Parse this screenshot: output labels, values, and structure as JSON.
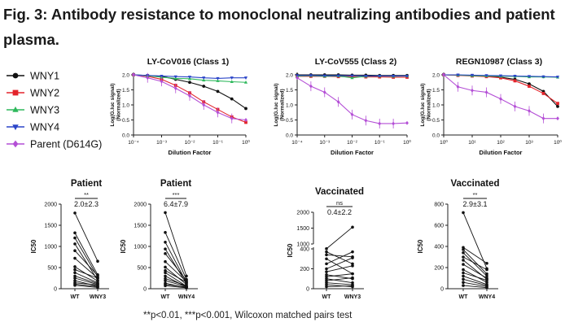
{
  "figure": {
    "title": "Fig. 3: Antibody resistance to monoclonal neutralizing antibodies and patient plasma.",
    "footnote": "**p<0.01, ***p<0.001, Wilcoxon matched pairs test"
  },
  "legend": {
    "entries": [
      {
        "name": "WNY1",
        "color": "#111111",
        "marker": "circle"
      },
      {
        "name": "WNY2",
        "color": "#e3242b",
        "marker": "square"
      },
      {
        "name": "WNY3",
        "color": "#2eb85c",
        "marker": "triangle-up"
      },
      {
        "name": "WNY4",
        "color": "#2b45c8",
        "marker": "triangle-down"
      },
      {
        "name": "Parent (D614G)",
        "color": "#b44fd6",
        "marker": "diamond"
      }
    ]
  },
  "colors": {
    "WNY1": "#111111",
    "WNY2": "#e3242b",
    "WNY3": "#2eb85c",
    "WNY4": "#2b45c8",
    "Parent (D614G)": "#b44fd6"
  },
  "chart_data": [
    {
      "type": "line",
      "title": "LY-CoV016 (Class 1)",
      "xlabel": "Dilution Factor",
      "ylabel": "Log(G.luc signal) (Normalized)",
      "xscale": "log",
      "xticks": [
        "10⁻⁴",
        "10⁻³",
        "10⁻²",
        "10⁻¹",
        "10⁰"
      ],
      "ylim": [
        0,
        2.0
      ],
      "yticks": [
        "0.0",
        "0.5",
        "1.0",
        "1.5",
        "2.0"
      ],
      "x": [
        -4,
        -3.5,
        -3,
        -2.5,
        -2,
        -1.5,
        -1,
        -0.5,
        0
      ],
      "series": [
        {
          "name": "WNY1",
          "values": [
            2.0,
            1.98,
            1.95,
            1.85,
            1.75,
            1.62,
            1.45,
            1.2,
            0.88
          ]
        },
        {
          "name": "WNY2",
          "values": [
            2.0,
            1.95,
            1.85,
            1.65,
            1.4,
            1.1,
            0.85,
            0.6,
            0.42
          ]
        },
        {
          "name": "WNY3",
          "values": [
            2.0,
            1.97,
            1.92,
            1.88,
            1.87,
            1.82,
            1.8,
            1.77,
            1.75
          ]
        },
        {
          "name": "WNY4",
          "values": [
            2.0,
            1.98,
            1.96,
            1.94,
            1.93,
            1.9,
            1.88,
            1.9,
            1.9
          ]
        },
        {
          "name": "Parent (D614G)",
          "values": [
            2.0,
            1.9,
            1.78,
            1.55,
            1.3,
            1.0,
            0.75,
            0.55,
            0.5
          ]
        }
      ]
    },
    {
      "type": "line",
      "title": "LY-CoV555 (Class 2)",
      "xlabel": "Dilution Factor",
      "ylabel": "Log(G.luc signal) (Normalized)",
      "xscale": "log",
      "xticks": [
        "10⁻⁴",
        "10⁻³",
        "10⁻²",
        "10⁻¹",
        "10⁰"
      ],
      "ylim": [
        0,
        2.0
      ],
      "yticks": [
        "0.0",
        "0.5",
        "1.0",
        "1.5",
        "2.0"
      ],
      "x": [
        -4,
        -3.5,
        -3,
        -2.5,
        -2,
        -1.5,
        -1,
        -0.5,
        0
      ],
      "series": [
        {
          "name": "WNY1",
          "values": [
            2.0,
            2.0,
            2.0,
            2.0,
            1.99,
            1.99,
            1.98,
            1.98,
            1.98
          ]
        },
        {
          "name": "WNY2",
          "values": [
            1.95,
            1.95,
            1.95,
            1.94,
            1.94,
            1.93,
            1.93,
            1.92,
            1.92
          ]
        },
        {
          "name": "WNY3",
          "values": [
            1.96,
            1.97,
            1.95,
            1.96,
            1.9,
            1.95,
            1.96,
            1.95,
            1.96
          ]
        },
        {
          "name": "WNY4",
          "values": [
            1.98,
            1.98,
            1.97,
            1.97,
            1.97,
            1.96,
            1.96,
            1.96,
            1.96
          ]
        },
        {
          "name": "Parent (D614G)",
          "values": [
            1.9,
            1.62,
            1.42,
            1.1,
            0.68,
            0.48,
            0.38,
            0.38,
            0.4
          ]
        }
      ]
    },
    {
      "type": "line",
      "title": "REGN10987 (Class 3)",
      "xlabel": "Dilution Factor",
      "ylabel": "Log(G.luc signal) (Normalized)",
      "xscale": "log",
      "xticks": [
        "10⁰",
        "10¹",
        "10²",
        "10³",
        "10⁰"
      ],
      "ylim": [
        0,
        2.0
      ],
      "yticks": [
        "0.0",
        "0.5",
        "1.0",
        "1.5",
        "2.0"
      ],
      "x": [
        0,
        0.5,
        1,
        1.5,
        2,
        2.5,
        3,
        3.5,
        4
      ],
      "series": [
        {
          "name": "WNY1",
          "values": [
            2.0,
            1.99,
            1.98,
            1.96,
            1.92,
            1.85,
            1.7,
            1.45,
            0.95
          ]
        },
        {
          "name": "WNY2",
          "values": [
            2.0,
            1.98,
            1.96,
            1.94,
            1.9,
            1.8,
            1.62,
            1.38,
            1.05
          ]
        },
        {
          "name": "WNY3",
          "values": [
            2.0,
            1.99,
            1.97,
            1.96,
            1.95,
            1.95,
            1.93,
            1.93,
            1.92
          ]
        },
        {
          "name": "WNY4",
          "values": [
            2.0,
            2.0,
            1.99,
            1.98,
            1.97,
            1.96,
            1.95,
            1.94,
            1.93
          ]
        },
        {
          "name": "Parent (D614G)",
          "values": [
            2.0,
            1.6,
            1.48,
            1.42,
            1.2,
            0.95,
            0.8,
            0.55,
            0.55
          ]
        }
      ]
    },
    {
      "type": "scatter",
      "title": "Patient",
      "ylabel": "IC50",
      "categories": [
        "WT",
        "WNY3"
      ],
      "ylim": [
        0,
        2000
      ],
      "yticks": [
        "0",
        "500",
        "1000",
        "1500",
        "2000"
      ],
      "significance": "**",
      "fold_change": "2.0±2.3",
      "pairs": [
        [
          1790,
          650
        ],
        [
          1320,
          330
        ],
        [
          1200,
          280
        ],
        [
          1060,
          200
        ],
        [
          900,
          310
        ],
        [
          720,
          250
        ],
        [
          520,
          180
        ],
        [
          450,
          250
        ],
        [
          380,
          140
        ],
        [
          300,
          120
        ],
        [
          250,
          100
        ],
        [
          190,
          60
        ],
        [
          140,
          90
        ],
        [
          110,
          50
        ],
        [
          80,
          30
        ]
      ]
    },
    {
      "type": "scatter",
      "title": "Patient",
      "ylabel": "IC50",
      "categories": [
        "WT",
        "WNY4"
      ],
      "ylim": [
        0,
        2000
      ],
      "yticks": [
        "0",
        "500",
        "1000",
        "1500",
        "2000"
      ],
      "significance": "***",
      "fold_change": "6.4±7.9",
      "pairs": [
        [
          1800,
          300
        ],
        [
          1330,
          220
        ],
        [
          1100,
          150
        ],
        [
          940,
          120
        ],
        [
          830,
          200
        ],
        [
          640,
          170
        ],
        [
          510,
          100
        ],
        [
          430,
          150
        ],
        [
          380,
          60
        ],
        [
          300,
          40
        ],
        [
          240,
          70
        ],
        [
          190,
          50
        ],
        [
          130,
          20
        ],
        [
          100,
          40
        ],
        [
          70,
          20
        ]
      ]
    },
    {
      "type": "scatter",
      "title": "Vaccinated",
      "ylabel": "IC50",
      "categories": [
        "WT",
        "WNY3"
      ],
      "yscale": "broken",
      "yticks": [
        "0",
        "200",
        "400",
        "1000",
        "1500",
        "2000"
      ],
      "significance": "ns",
      "fold_change": "0.4±2.2",
      "pairs": [
        [
          850,
          1530
        ],
        [
          370,
          250
        ],
        [
          340,
          320
        ],
        [
          300,
          150
        ],
        [
          250,
          370
        ],
        [
          200,
          310
        ],
        [
          170,
          230
        ],
        [
          140,
          100
        ],
        [
          120,
          150
        ],
        [
          100,
          60
        ],
        [
          80,
          110
        ],
        [
          60,
          40
        ],
        [
          40,
          20
        ],
        [
          20,
          30
        ]
      ]
    },
    {
      "type": "scatter",
      "title": "Vaccinated",
      "ylabel": "IC50",
      "categories": [
        "WT",
        "WNY4"
      ],
      "ylim": [
        0,
        800
      ],
      "yticks": [
        "0",
        "200",
        "400",
        "600",
        "800"
      ],
      "significance": "**",
      "fold_change": "2.9±3.1",
      "pairs": [
        [
          720,
          190
        ],
        [
          390,
          240
        ],
        [
          370,
          140
        ],
        [
          340,
          120
        ],
        [
          300,
          180
        ],
        [
          270,
          90
        ],
        [
          230,
          100
        ],
        [
          180,
          60
        ],
        [
          150,
          80
        ],
        [
          120,
          40
        ],
        [
          90,
          30
        ],
        [
          60,
          20
        ],
        [
          30,
          10
        ]
      ]
    }
  ]
}
